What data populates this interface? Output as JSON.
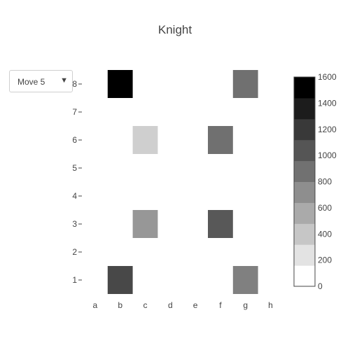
{
  "chart_data": {
    "type": "heatmap",
    "title": "Knight",
    "x_categories": [
      "a",
      "b",
      "c",
      "d",
      "e",
      "f",
      "g",
      "h"
    ],
    "y_categories": [
      "1",
      "2",
      "3",
      "4",
      "5",
      "6",
      "7",
      "8"
    ],
    "cells": [
      {
        "x": "b",
        "y": "8",
        "value": 1600
      },
      {
        "x": "g",
        "y": "8",
        "value": 900
      },
      {
        "x": "c",
        "y": "6",
        "value": 300
      },
      {
        "x": "f",
        "y": "6",
        "value": 900
      },
      {
        "x": "c",
        "y": "3",
        "value": 650
      },
      {
        "x": "f",
        "y": "3",
        "value": 1050
      },
      {
        "x": "b",
        "y": "1",
        "value": 1150
      },
      {
        "x": "g",
        "y": "1",
        "value": 800
      }
    ],
    "colorscale": {
      "min": 0,
      "max": 1600,
      "ticks": [
        0,
        200,
        400,
        600,
        800,
        1000,
        1200,
        1400,
        1600
      ],
      "low_color": "#ffffff",
      "high_color": "#000000"
    },
    "selector": {
      "selected": "Move 5"
    }
  }
}
